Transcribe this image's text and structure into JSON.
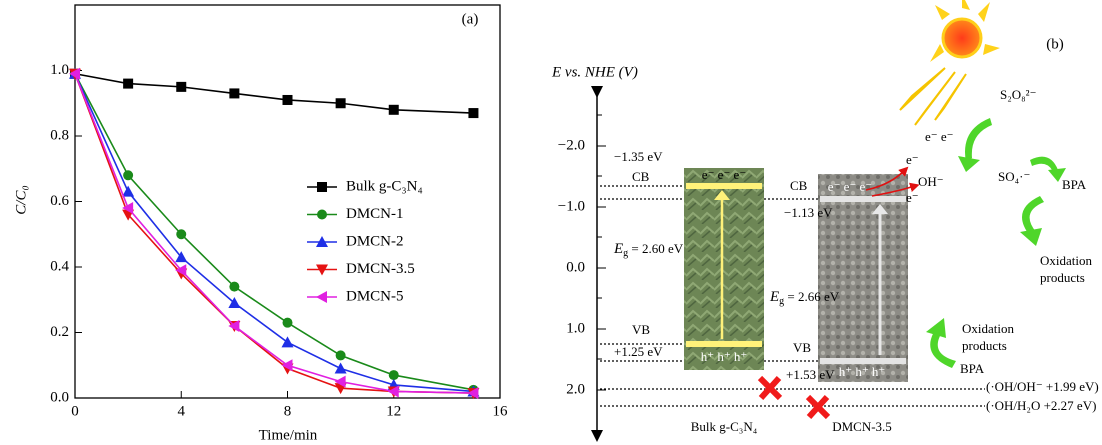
{
  "chart_data": {
    "type": "line",
    "panel_label": "(a)",
    "xlabel": "Time/min",
    "ylabel": "C/C₀",
    "x": [
      0,
      2,
      4,
      6,
      8,
      10,
      12,
      15
    ],
    "xlim": [
      0,
      16
    ],
    "xticks": [
      0,
      4,
      8,
      12,
      16
    ],
    "ylim": [
      0,
      1.2
    ],
    "yticks": [
      {
        "value": 0,
        "label": "0.0"
      },
      0.2,
      0.4,
      0.6,
      0.8,
      {
        "value": 1,
        "label": "1.0"
      }
    ],
    "legend": "right",
    "series": [
      {
        "name": "Bulk g-C₃N₄",
        "color": "#000000",
        "marker": "square",
        "values": [
          0.99,
          0.96,
          0.95,
          0.93,
          0.91,
          0.9,
          0.88,
          0.87
        ]
      },
      {
        "name": "DMCN-1",
        "color": "#1a8a1a",
        "marker": "circle",
        "values": [
          0.99,
          0.68,
          0.5,
          0.34,
          0.23,
          0.13,
          0.07,
          0.025
        ]
      },
      {
        "name": "DMCN-2",
        "color": "#1f2fe6",
        "marker": "triangle-up",
        "values": [
          0.99,
          0.63,
          0.43,
          0.29,
          0.17,
          0.09,
          0.04,
          0.02
        ]
      },
      {
        "name": "DMCN-3.5",
        "color": "#e51212",
        "marker": "triangle-down",
        "values": [
          0.99,
          0.56,
          0.38,
          0.22,
          0.09,
          0.03,
          0.02,
          0.015
        ]
      },
      {
        "name": "DMCN-5",
        "color": "#e020e0",
        "marker": "triangle-left",
        "values": [
          0.99,
          0.58,
          0.39,
          0.22,
          0.1,
          0.05,
          0.02,
          0.015
        ]
      }
    ]
  },
  "diagram": {
    "panel_label": "(b)",
    "axis_title": "E vs. NHE (V)",
    "axis_ticks": [
      "−2.0",
      "−1.0",
      "0.0",
      "1.0",
      "2.0"
    ],
    "bulk": {
      "cb_energy": "−1.35 eV",
      "cb": "CB",
      "gap_symbol": "E",
      "gap_sub": "g",
      "gap": " = 2.60 eV",
      "vb": "VB",
      "vb_energy": "+1.25 eV",
      "electrons": "e⁻  e⁻  e⁻",
      "holes": "h⁺  h⁺  h⁺",
      "label": "Bulk g-C₃N₄"
    },
    "dmcn": {
      "cb": "CB",
      "cb_energy": "−1.13 eV",
      "gap_symbol": "E",
      "gap_sub": "g",
      "gap": " = 2.66 eV",
      "vb": "VB",
      "vb_energy": "+1.53 eV",
      "electrons": "e⁻  e⁻  e⁻",
      "holes": "h⁺  h⁺  h⁺",
      "label": "DMCN-3.5"
    },
    "potentials": [
      "(·OH/OH⁻ +1.99 eV)",
      "(·OH/H₂O +2.27 eV)"
    ],
    "species": {
      "persulfate": "S₂O₈²⁻",
      "sulfate_radical": "SO₄·⁻",
      "hydroxide": "OH⁻",
      "electrons_top": "e⁻ e⁻",
      "electron_a": "e⁻",
      "electron_b": "e⁻",
      "bpa_top": "BPA",
      "products_top_1": "Oxidation",
      "products_top_2": "products",
      "products_bottom_1": "Oxidation",
      "products_bottom_2": "products",
      "bpa_bottom": "BPA"
    }
  }
}
